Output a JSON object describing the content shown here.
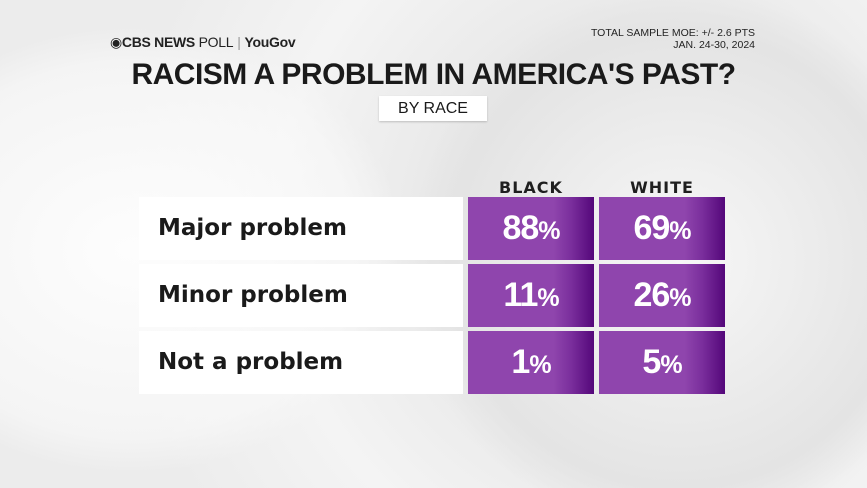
{
  "header": {
    "brand": "CBS NEWS",
    "brand_suffix": "POLL",
    "partner": "YouGov",
    "moe": "TOTAL SAMPLE MOE: +/- 2.6 PTS",
    "dates": "JAN. 24-30, 2024"
  },
  "chart_data": {
    "type": "table",
    "title": "RACISM A PROBLEM IN AMERICA'S PAST?",
    "subtitle": "BY RACE",
    "columns": [
      "BLACK",
      "WHITE"
    ],
    "rows": [
      {
        "label": "Major problem",
        "values": [
          88,
          69
        ]
      },
      {
        "label": "Minor problem",
        "values": [
          11,
          26
        ]
      },
      {
        "label": "Not a problem",
        "values": [
          1,
          5
        ]
      }
    ],
    "unit": "%",
    "colors": {
      "cell": "#8f45ad",
      "cell_edge": "#54077a",
      "label_bg": "#ffffff"
    }
  }
}
